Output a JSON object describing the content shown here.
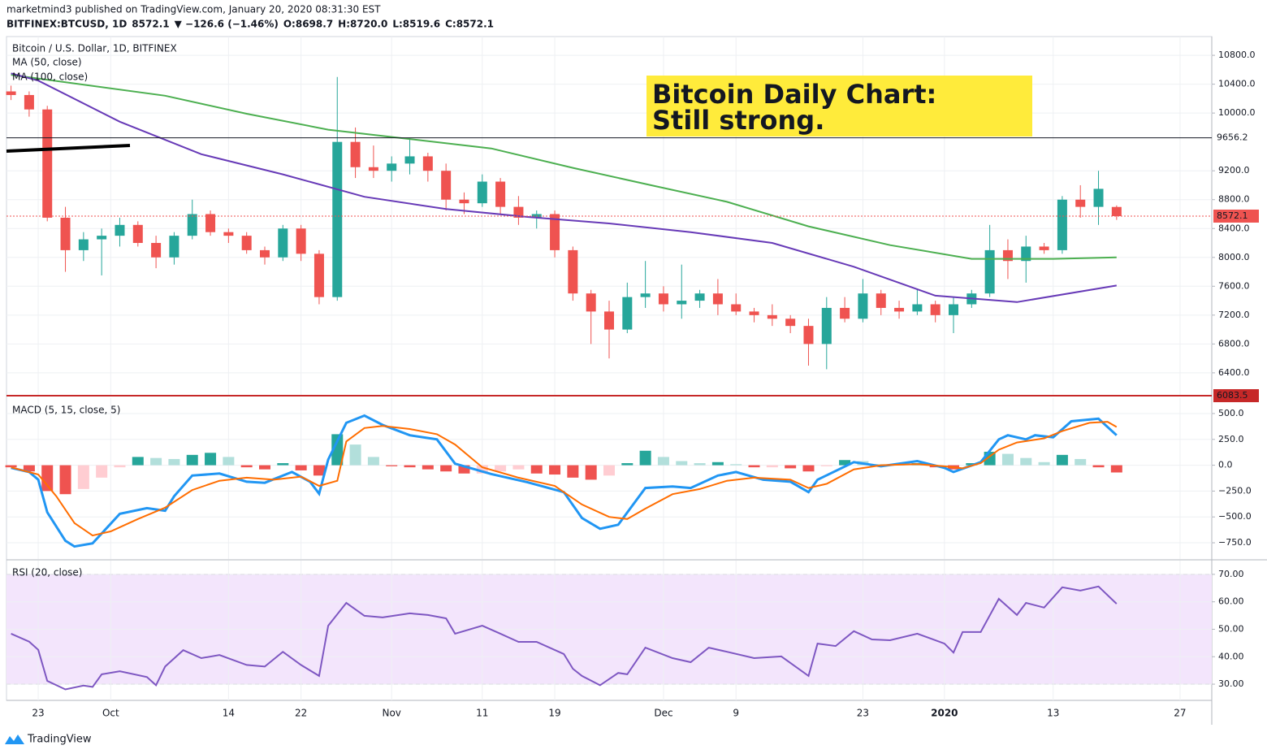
{
  "header": {
    "published": "marketmind3 published on TradingView.com, January 20, 2020 08:31:30 EST",
    "quote": [
      "BITFINEX:BTCUSD, 1D",
      "8572.1",
      "▼ −126.6 (−1.46%)",
      "O:",
      "8698.7",
      "H:",
      "8720.0",
      "L:",
      "8519.6",
      "C:",
      "8572.1"
    ],
    "quote_colors": [
      "#131722",
      "#131722",
      "#ef5350",
      "#131722",
      "#ef5350",
      "#131722",
      "#ef5350",
      "#131722",
      "#ef5350",
      "#131722",
      "#ef5350"
    ]
  },
  "footer": {
    "brand": "TradingView"
  },
  "chart_data": [
    {
      "type": "candlestick",
      "title": "Bitcoin / U.S. Dollar, 1D, BITFINEX",
      "x": [
        0,
        2,
        4,
        6,
        8,
        10,
        12,
        14,
        16,
        18,
        20,
        22,
        24,
        26,
        28,
        30,
        32,
        34,
        36,
        38,
        40,
        42,
        44,
        46,
        48,
        50,
        52,
        54,
        56,
        58,
        60,
        62,
        64,
        66,
        68,
        70,
        72,
        74,
        76,
        78,
        80,
        82,
        84,
        86,
        88,
        90,
        92,
        94,
        96,
        98,
        100,
        102,
        104,
        106,
        108,
        110,
        112,
        114,
        116,
        118,
        120,
        122
      ],
      "open": [
        10300,
        10250,
        10050,
        8550,
        8100,
        8250,
        8300,
        8450,
        8200,
        8000,
        8300,
        8600,
        8350,
        8300,
        8100,
        8000,
        8400,
        8050,
        7450,
        9600,
        9250,
        9200,
        9300,
        9400,
        9200,
        8800,
        8750,
        9050,
        8700,
        8550,
        8600,
        8100,
        7500,
        7250,
        7000,
        7450,
        7500,
        7350,
        7400,
        7500,
        7350,
        7250,
        7200,
        7150,
        7050,
        6800,
        7300,
        7150,
        7500,
        7300,
        7250,
        7350,
        7200,
        7350,
        7500,
        8100,
        7950,
        8150,
        8100,
        8800,
        8700,
        8698.7
      ],
      "high": [
        10380,
        10300,
        10100,
        8700,
        8350,
        8400,
        8550,
        8500,
        8300,
        8350,
        8800,
        8650,
        8400,
        8350,
        8150,
        8450,
        8450,
        8100,
        10500,
        9800,
        9550,
        9400,
        9650,
        9450,
        9300,
        8900,
        9150,
        9100,
        8850,
        8650,
        8650,
        8150,
        7550,
        7400,
        7650,
        7950,
        7600,
        7900,
        7550,
        7700,
        7500,
        7300,
        7350,
        7200,
        7150,
        7450,
        7450,
        7700,
        7550,
        7400,
        7550,
        7400,
        7450,
        7550,
        8450,
        8250,
        8300,
        8200,
        8850,
        9000,
        9200,
        8720
      ],
      "low": [
        10180,
        9950,
        8500,
        7800,
        7950,
        7750,
        8150,
        8150,
        7850,
        7900,
        8250,
        8300,
        8200,
        8050,
        7900,
        7950,
        7950,
        7350,
        7400,
        9100,
        9100,
        9050,
        9150,
        9050,
        8650,
        8600,
        8700,
        8600,
        8450,
        8400,
        8000,
        7400,
        6800,
        6600,
        6950,
        7300,
        7250,
        7150,
        7300,
        7200,
        7200,
        7100,
        7050,
        6950,
        6500,
        6450,
        7100,
        7100,
        7200,
        7150,
        7200,
        7100,
        6950,
        7300,
        7450,
        7700,
        7650,
        8050,
        8050,
        8550,
        8450,
        8519.6
      ],
      "close": [
        10250,
        10050,
        8550,
        8100,
        8250,
        8300,
        8450,
        8200,
        8000,
        8300,
        8600,
        8350,
        8300,
        8100,
        8000,
        8400,
        8050,
        7450,
        9600,
        9250,
        9200,
        9300,
        9400,
        9200,
        8800,
        8750,
        9050,
        8700,
        8550,
        8600,
        8100,
        7500,
        7250,
        7000,
        7450,
        7500,
        7350,
        7400,
        7500,
        7350,
        7250,
        7200,
        7150,
        7050,
        6800,
        7300,
        7150,
        7500,
        7300,
        7250,
        7350,
        7200,
        7350,
        7500,
        8100,
        7950,
        8150,
        8100,
        8800,
        8700,
        8950,
        8572.1
      ],
      "up_color": "#26a69a",
      "down_color": "#ef5350",
      "series": [
        {
          "name": "MA (50, close)",
          "color": "#4caf50",
          "x": [
            0,
            17,
            26,
            35,
            44,
            53,
            62,
            71,
            79,
            88,
            97,
            106,
            115,
            122
          ],
          "values": [
            10530,
            10240,
            9990,
            9770,
            9640,
            9510,
            9240,
            8990,
            8770,
            8430,
            8170,
            7980,
            7980,
            8000
          ]
        },
        {
          "name": "MA (100, close)",
          "color": "#673ab7",
          "x": [
            0,
            3,
            12,
            21,
            30,
            39,
            48,
            57,
            66,
            75,
            84,
            93,
            102,
            111,
            122
          ],
          "values": [
            10550,
            10450,
            9880,
            9430,
            9150,
            8840,
            8670,
            8560,
            8470,
            8350,
            8200,
            7870,
            7470,
            7380,
            7610
          ]
        }
      ],
      "price_markers": [
        {
          "value": 9656.2,
          "color": "#131722"
        },
        {
          "value": 8572.1,
          "color": "#ef5350"
        },
        {
          "value": 6083.5,
          "color": "#c62828"
        }
      ],
      "annotation": [
        "Bitcoin Daily Chart:",
        "Still strong."
      ],
      "annotation_color": "#ffeb3b",
      "ylim": [
        6083.5,
        11060
      ],
      "yticks": [
        {
          "value": 6400,
          "label": "6400.0"
        },
        {
          "value": 6800,
          "label": "6800.0"
        },
        {
          "value": 7200,
          "label": "7200.0"
        },
        {
          "value": 7600,
          "label": "7600.0"
        },
        {
          "value": 8000,
          "label": "8000.0"
        },
        {
          "value": 8400,
          "label": "8400.0"
        },
        {
          "value": 8800,
          "label": "8800.0"
        },
        {
          "value": 9200,
          "label": "9200.0"
        },
        {
          "value": 10000,
          "label": "10000.0"
        },
        {
          "value": 10400,
          "label": "10400.0"
        },
        {
          "value": 10800,
          "label": "10800.0"
        }
      ]
    },
    {
      "type": "macd",
      "title": "MACD (5, 15, close, 5)",
      "histogram": {
        "values": [
          -20,
          -60,
          -250,
          -280,
          -230,
          -120,
          -20,
          80,
          70,
          60,
          100,
          120,
          80,
          -20,
          -40,
          20,
          -50,
          -100,
          300,
          200,
          80,
          -10,
          -20,
          -40,
          -60,
          -80,
          -80,
          -60,
          -40,
          -80,
          -90,
          -120,
          -140,
          -100,
          20,
          140,
          80,
          40,
          20,
          30,
          10,
          -20,
          -20,
          -30,
          -60,
          -10,
          50,
          40,
          10,
          10,
          20,
          -20,
          -40,
          20,
          130,
          110,
          70,
          30,
          100,
          60,
          -20,
          -70
        ],
        "colors": [
          "#26a69a",
          "#b2dfdb",
          "#ffcdd2",
          "#ef5350"
        ]
      },
      "series": [
        {
          "color": "#2196f3",
          "x": [
            0,
            2,
            3,
            4,
            6,
            7,
            9,
            12,
            15,
            17,
            18,
            20,
            23,
            26,
            28,
            31,
            33,
            34,
            35,
            37,
            39,
            41,
            44,
            47,
            49,
            53,
            57,
            61,
            63,
            65,
            67,
            70,
            73,
            75,
            78,
            80,
            83,
            86,
            88,
            89,
            93,
            96,
            100,
            103,
            104,
            107,
            109,
            110,
            112,
            113,
            115,
            117,
            120,
            122
          ],
          "values": [
            -25,
            -65,
            -140,
            -455,
            -730,
            -786,
            -755,
            -470,
            -415,
            -440,
            -300,
            -100,
            -80,
            -160,
            -170,
            -65,
            -160,
            -275,
            55,
            410,
            480,
            390,
            290,
            250,
            15,
            -85,
            -165,
            -260,
            -510,
            -615,
            -575,
            -220,
            -205,
            -220,
            -100,
            -65,
            -140,
            -160,
            -260,
            -140,
            30,
            -10,
            40,
            -25,
            -65,
            30,
            250,
            290,
            250,
            290,
            270,
            425,
            450,
            290
          ]
        },
        {
          "color": "#ff6d00",
          "x": [
            0,
            3,
            5,
            7,
            9,
            11,
            14,
            17,
            20,
            23,
            26,
            29,
            32,
            34,
            36,
            37,
            39,
            41,
            44,
            47,
            49,
            52,
            56,
            60,
            63,
            66,
            68,
            70,
            73,
            76,
            79,
            82,
            86,
            88,
            90,
            93,
            96,
            100,
            103,
            105,
            107,
            109,
            111,
            114,
            116,
            119,
            121,
            122
          ],
          "values": [
            -20,
            -90,
            -300,
            -560,
            -680,
            -640,
            -520,
            -410,
            -240,
            -150,
            -120,
            -140,
            -110,
            -200,
            -150,
            230,
            360,
            380,
            350,
            300,
            200,
            -20,
            -120,
            -200,
            -380,
            -500,
            -520,
            -420,
            -280,
            -230,
            -150,
            -120,
            -140,
            -220,
            -180,
            -40,
            0,
            10,
            -10,
            -30,
            20,
            150,
            220,
            260,
            330,
            410,
            420,
            370
          ]
        }
      ],
      "ylim": [
        -907,
        649
      ],
      "yticks": [
        {
          "value": -750,
          "label": "−750.0"
        },
        {
          "value": -500,
          "label": "−500.0"
        },
        {
          "value": -250,
          "label": "−250.0"
        },
        {
          "value": 0,
          "label": "0.0"
        },
        {
          "value": 250,
          "label": "250.0"
        },
        {
          "value": 500,
          "label": "500.0"
        }
      ]
    },
    {
      "type": "line",
      "title": "RSI (20, close)",
      "series": [
        {
          "color": "#7e57c2",
          "x": [
            0,
            2,
            3,
            4,
            6,
            8,
            9,
            10,
            12,
            15,
            16,
            17,
            19,
            21,
            23,
            26,
            28,
            30,
            32,
            34,
            35,
            37,
            39,
            41,
            44,
            46,
            48,
            49,
            52,
            54,
            56,
            58,
            61,
            62,
            63,
            65,
            67,
            68,
            70,
            73,
            75,
            77,
            79,
            82,
            85,
            88,
            89,
            91,
            93,
            95,
            97,
            100,
            103,
            104,
            105,
            107,
            109,
            111,
            112,
            114,
            116,
            118,
            120,
            122
          ],
          "values": [
            48.4,
            45.5,
            42.5,
            31.2,
            28.1,
            29.5,
            29,
            33.6,
            34.7,
            32.6,
            29.6,
            36.4,
            42.4,
            39.5,
            40.6,
            37,
            36.4,
            41.8,
            37,
            33,
            51.3,
            59.6,
            54.9,
            54.3,
            55.8,
            55.2,
            54,
            48.4,
            51.3,
            48.4,
            45.4,
            45.4,
            41,
            35.6,
            33,
            29.6,
            34.1,
            33.6,
            43.3,
            39.5,
            38,
            43.3,
            41.8,
            39.5,
            40.1,
            33,
            44.8,
            43.9,
            49.3,
            46.3,
            46,
            48.4,
            44.8,
            41.5,
            49,
            49,
            61.1,
            55.2,
            59.6,
            57.9,
            65.3,
            64.1,
            65.6,
            59.3
          ]
        }
      ],
      "band": [
        30,
        70
      ],
      "band_color": "#f3e5fc",
      "ylim": [
        24.1,
        75
      ],
      "yticks": [
        {
          "value": 30,
          "label": "30.00"
        },
        {
          "value": 40,
          "label": "40.00"
        },
        {
          "value": 50,
          "label": "50.00"
        },
        {
          "value": 60,
          "label": "60.00"
        },
        {
          "value": 70,
          "label": "70.00"
        }
      ],
      "xlim": [
        -0.5,
        132.5
      ],
      "xticks": [
        {
          "value": 3,
          "label": "23"
        },
        {
          "value": 11,
          "label": "Oct"
        },
        {
          "value": 24,
          "label": "14"
        },
        {
          "value": 32,
          "label": "22"
        },
        {
          "value": 42,
          "label": "Nov"
        },
        {
          "value": 52,
          "label": "11"
        },
        {
          "value": 60,
          "label": "19"
        },
        {
          "value": 72,
          "label": "Dec"
        },
        {
          "value": 80,
          "label": "9"
        },
        {
          "value": 94,
          "label": "23"
        },
        {
          "value": 103,
          "label": "2020"
        },
        {
          "value": 115,
          "label": "13"
        },
        {
          "value": 129,
          "label": "27"
        }
      ]
    }
  ]
}
